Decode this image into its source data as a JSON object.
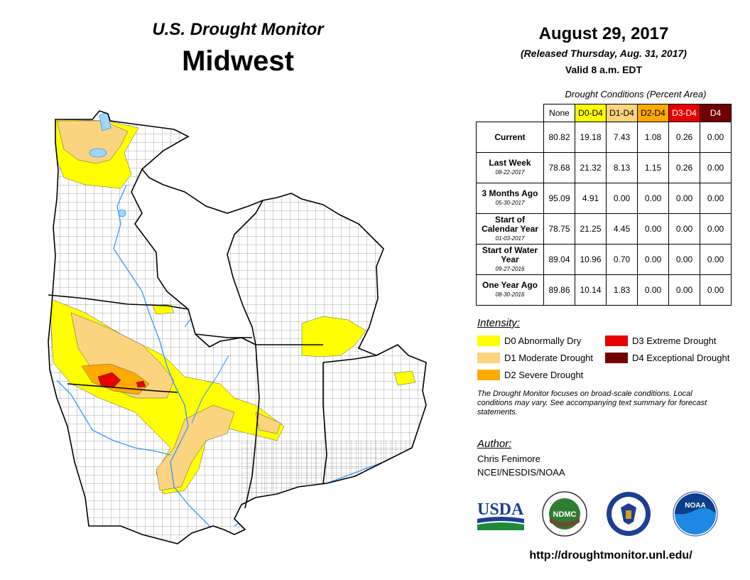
{
  "header": {
    "title_sub": "U.S. Drought Monitor",
    "title_main": "Midwest",
    "date": "August 29, 2017",
    "released": "(Released Thursday, Aug. 31, 2017)",
    "valid": "Valid 8 a.m. EDT"
  },
  "table": {
    "caption": "Drought Conditions (Percent Area)",
    "columns": [
      {
        "label": "None",
        "color": "#ffffff"
      },
      {
        "label": "D0-D4",
        "color": "#ffff00"
      },
      {
        "label": "D1-D4",
        "color": "#fcd37f"
      },
      {
        "label": "D2-D4",
        "color": "#ffaa00"
      },
      {
        "label": "D3-D4",
        "color": "#e60000"
      },
      {
        "label": "D4",
        "color": "#730000"
      }
    ],
    "rows": [
      {
        "label": "Current",
        "date": "",
        "values": [
          "80.82",
          "19.18",
          "7.43",
          "1.08",
          "0.26",
          "0.00"
        ]
      },
      {
        "label": "Last Week",
        "date": "08-22-2017",
        "values": [
          "78.68",
          "21.32",
          "8.13",
          "1.15",
          "0.26",
          "0.00"
        ]
      },
      {
        "label": "3 Months Ago",
        "date": "05-30-2017",
        "values": [
          "95.09",
          "4.91",
          "0.00",
          "0.00",
          "0.00",
          "0.00"
        ]
      },
      {
        "label": "Start of Calendar Year",
        "date": "01-03-2017",
        "values": [
          "78.75",
          "21.25",
          "4.45",
          "0.00",
          "0.00",
          "0.00"
        ]
      },
      {
        "label": "Start of Water Year",
        "date": "09-27-2016",
        "values": [
          "89.04",
          "10.96",
          "0.70",
          "0.00",
          "0.00",
          "0.00"
        ]
      },
      {
        "label": "One Year Ago",
        "date": "08-30-2016",
        "values": [
          "89.86",
          "10.14",
          "1.83",
          "0.00",
          "0.00",
          "0.00"
        ]
      }
    ]
  },
  "legend": {
    "title": "Intensity:",
    "items": [
      {
        "label": "D0 Abnormally Dry",
        "color": "#ffff00"
      },
      {
        "label": "D1 Moderate Drought",
        "color": "#fcd37f"
      },
      {
        "label": "D2 Severe Drought",
        "color": "#ffaa00"
      },
      {
        "label": "D3 Extreme Drought",
        "color": "#e60000"
      },
      {
        "label": "D4 Exceptional Drought",
        "color": "#730000"
      }
    ]
  },
  "note": "The Drought Monitor focuses on broad-scale conditions. Local conditions may vary. See accompanying text summary for forecast statements.",
  "author": {
    "title": "Author:",
    "name": "Chris Fenimore",
    "org": "NCEI/NESDIS/NOAA"
  },
  "logos": {
    "usda": "USDA",
    "ndmc": "NDMC",
    "noaa": "NOAA"
  },
  "url": "http://droughtmonitor.unl.edu/",
  "colors": {
    "water": "#3399ff",
    "lake": "#9fd5ff",
    "county_line": "#333333"
  }
}
